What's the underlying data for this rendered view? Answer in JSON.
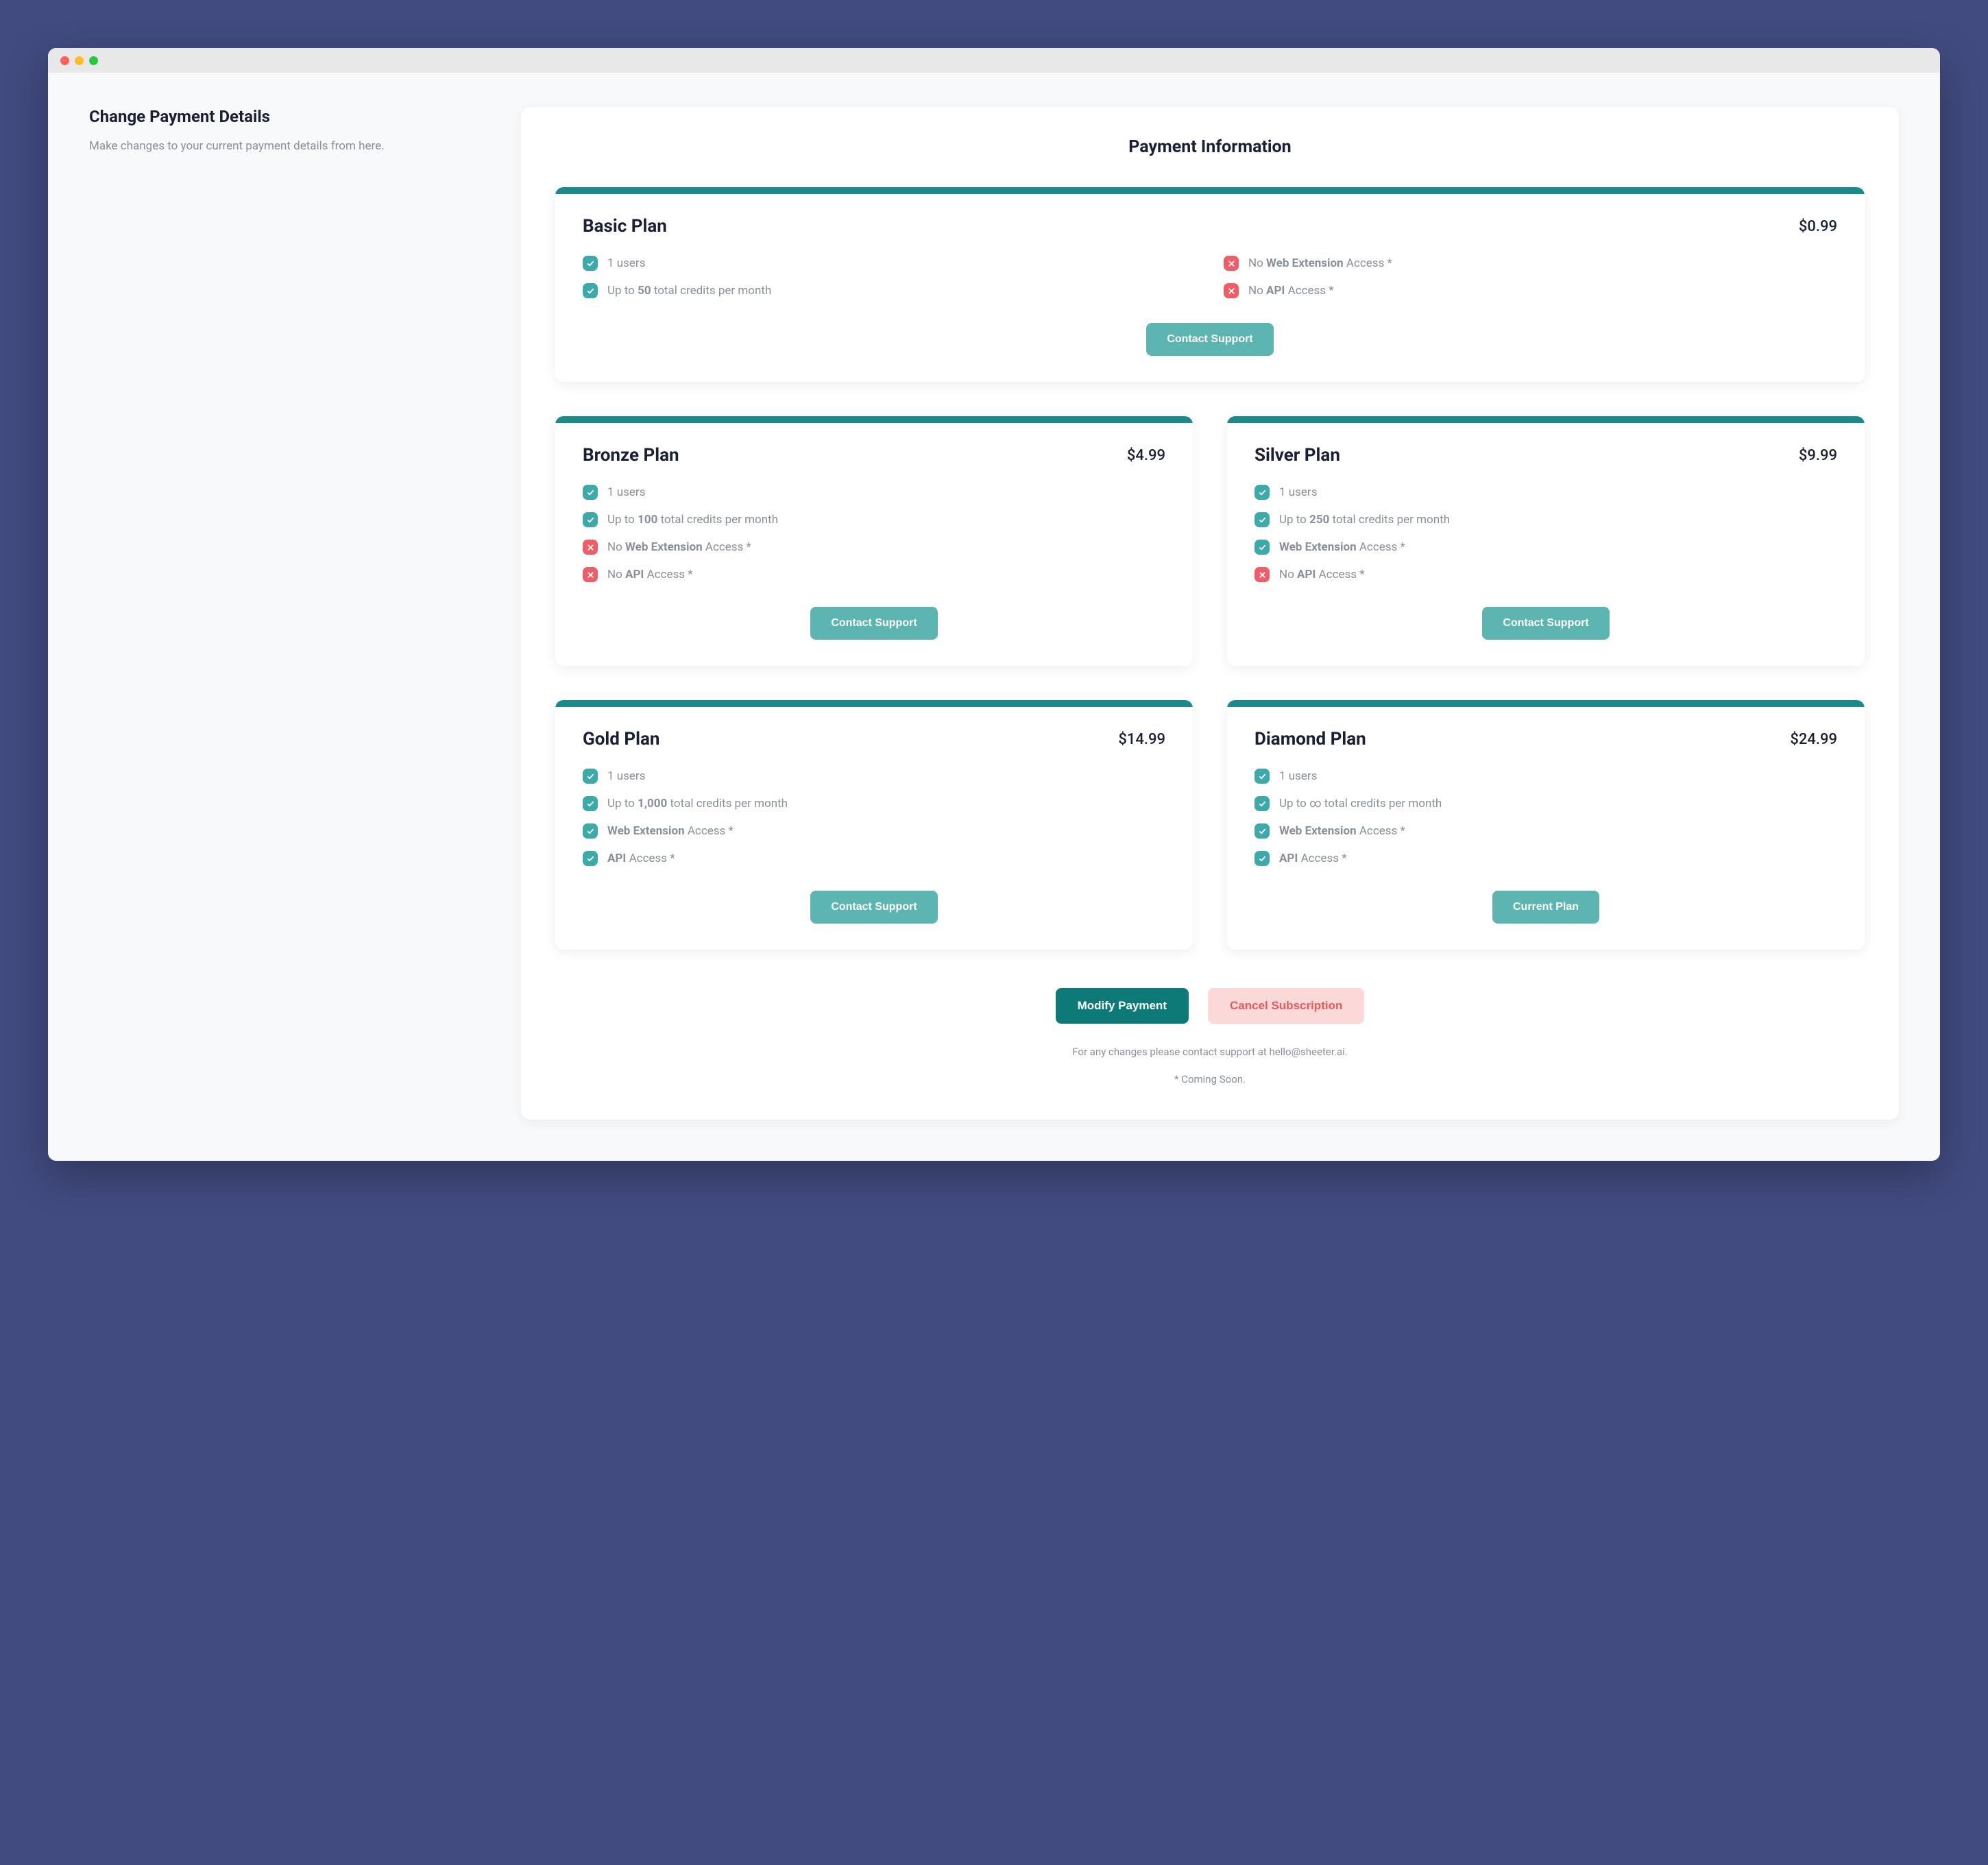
{
  "colors": {
    "page_bg": "#424b80",
    "window_bg": "#f8f9fa",
    "titlebar_bg": "#e8e8e8",
    "card_bg": "#ffffff",
    "text_heading": "#1a1f36",
    "text_muted": "#8a8f9a",
    "plan_accent": "#1a8a8a",
    "cta_bg": "#5cb5b0",
    "primary_btn_bg": "#0d7a77",
    "danger_btn_bg": "#fad9d8",
    "danger_btn_text": "#e85a5a",
    "check_bg": "#3caaa8",
    "cross_bg": "#f05d66",
    "tl_red": "#ff5f56",
    "tl_yellow": "#ffbd2e",
    "tl_green": "#27c93f"
  },
  "sidebar": {
    "title": "Change Payment Details",
    "description": "Make changes to your current payment details from here."
  },
  "main": {
    "title": "Payment Information"
  },
  "plans": [
    {
      "id": "basic",
      "name": "Basic Plan",
      "price": "$0.99",
      "full_width": true,
      "cta": "Contact Support",
      "features": [
        {
          "ok": true,
          "html": "1 users"
        },
        {
          "ok": false,
          "html": "No <b>Web Extension</b> Access *"
        },
        {
          "ok": true,
          "html": "Up to <b>50</b> total credits per month"
        },
        {
          "ok": false,
          "html": "No <b>API</b> Access *"
        }
      ]
    },
    {
      "id": "bronze",
      "name": "Bronze Plan",
      "price": "$4.99",
      "full_width": false,
      "cta": "Contact Support",
      "features": [
        {
          "ok": true,
          "html": "1 users"
        },
        {
          "ok": true,
          "html": "Up to <b>100</b> total credits per month"
        },
        {
          "ok": false,
          "html": "No <b>Web Extension</b> Access *"
        },
        {
          "ok": false,
          "html": "No <b>API</b> Access *"
        }
      ]
    },
    {
      "id": "silver",
      "name": "Silver Plan",
      "price": "$9.99",
      "full_width": false,
      "cta": "Contact Support",
      "features": [
        {
          "ok": true,
          "html": "1 users"
        },
        {
          "ok": true,
          "html": "Up to <b>250</b> total credits per month"
        },
        {
          "ok": true,
          "html": "<b>Web Extension</b> Access *"
        },
        {
          "ok": false,
          "html": "No <b>API</b> Access *"
        }
      ]
    },
    {
      "id": "gold",
      "name": "Gold Plan",
      "price": "$14.99",
      "full_width": false,
      "cta": "Contact Support",
      "features": [
        {
          "ok": true,
          "html": "1 users"
        },
        {
          "ok": true,
          "html": "Up to <b>1,000</b> total credits per month"
        },
        {
          "ok": true,
          "html": "<b>Web Extension</b> Access *"
        },
        {
          "ok": true,
          "html": "<b>API</b> Access *"
        }
      ]
    },
    {
      "id": "diamond",
      "name": "Diamond Plan",
      "price": "$24.99",
      "full_width": false,
      "cta": "Current Plan",
      "features": [
        {
          "ok": true,
          "html": "1 users"
        },
        {
          "ok": true,
          "html": "Up to ∞ total credits per month"
        },
        {
          "ok": true,
          "html": "<b>Web Extension</b> Access *"
        },
        {
          "ok": true,
          "html": "<b>API</b> Access *"
        }
      ]
    }
  ],
  "actions": {
    "primary": "Modify Payment",
    "danger": "Cancel Subscription"
  },
  "footnotes": {
    "contact": "For any changes please contact support at hello@sheeter.ai.",
    "coming_soon": "* Coming Soon."
  }
}
